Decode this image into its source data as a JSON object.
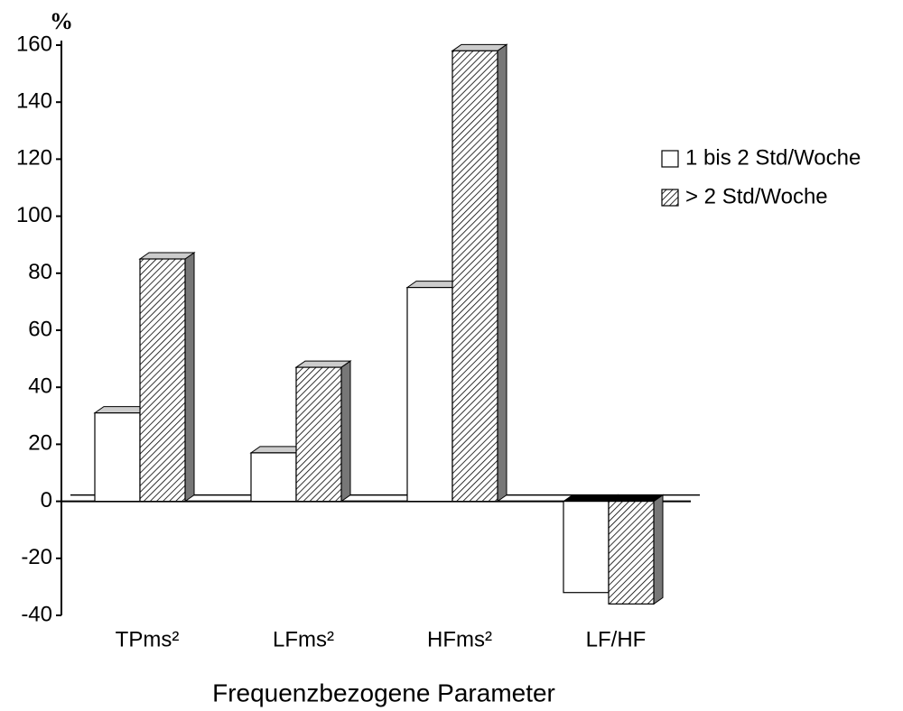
{
  "chart_data": {
    "type": "bar3d",
    "y_unit": "%",
    "x_label": "Frequenzbezogene Parameter",
    "categories": [
      "TPms²",
      "LFms²",
      "HFms²",
      "LF/HF"
    ],
    "series": [
      {
        "name": "1 bis 2 Std/Woche",
        "color": "#ffffff",
        "pattern": "none",
        "values": [
          31,
          17,
          75,
          -32
        ]
      },
      {
        "name": "> 2 Std/Woche",
        "color": "#ffffff",
        "pattern": "hatch",
        "values": [
          85,
          47,
          158,
          -36
        ]
      }
    ],
    "ylim": [
      -40,
      160
    ],
    "yticks": [
      -40,
      -20,
      0,
      20,
      40,
      60,
      80,
      100,
      120,
      140,
      160
    ],
    "legend": "right"
  }
}
